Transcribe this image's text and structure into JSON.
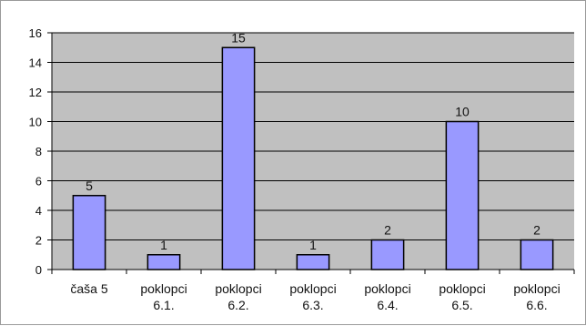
{
  "chart_data": {
    "type": "bar",
    "categories": [
      [
        "čaša 5"
      ],
      [
        "poklopci",
        "6.1."
      ],
      [
        "poklopci",
        "6.2."
      ],
      [
        "poklopci",
        "6.3."
      ],
      [
        "poklopci",
        "6.4."
      ],
      [
        "poklopci",
        "6.5."
      ],
      [
        "poklopci",
        "6.6."
      ]
    ],
    "values": [
      5,
      1,
      15,
      1,
      2,
      10,
      2
    ],
    "ylim": [
      0,
      16
    ],
    "yticks": [
      0,
      2,
      4,
      6,
      8,
      10,
      12,
      14,
      16
    ],
    "grid": true,
    "legend": "none",
    "colors": {
      "bar_fill": "#9999ff",
      "bar_stroke": "#000000",
      "plot_bg": "#c0c0c0",
      "grid": "#000000"
    }
  }
}
